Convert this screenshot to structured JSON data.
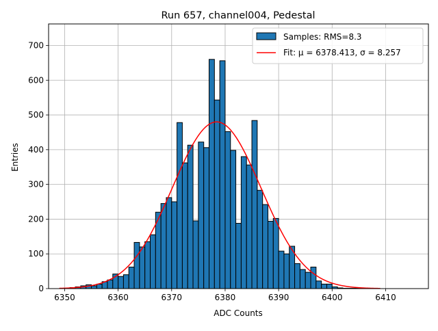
{
  "chart_data": {
    "type": "bar",
    "title": "Run 657, channel004, Pedestal",
    "xlabel": "ADC Counts",
    "ylabel": "Entries",
    "xlim": [
      6347,
      6418
    ],
    "ylim": [
      0,
      762
    ],
    "xticks": [
      6350,
      6360,
      6370,
      6380,
      6390,
      6400,
      6410
    ],
    "yticks": [
      0,
      100,
      200,
      300,
      400,
      500,
      600,
      700
    ],
    "grid": true,
    "legend_position": "top-right",
    "bin_start": 6350,
    "bin_width": 1,
    "counts": [
      1,
      3,
      5,
      8,
      11,
      8,
      13,
      20,
      25,
      42,
      35,
      40,
      62,
      133,
      120,
      135,
      155,
      220,
      245,
      262,
      250,
      478,
      362,
      413,
      195,
      422,
      406,
      660,
      543,
      656,
      452,
      398,
      188,
      380,
      356,
      484,
      283,
      242,
      194,
      202,
      108,
      100,
      122,
      72,
      55,
      47,
      62,
      22,
      13,
      13,
      5,
      2,
      1,
      1,
      1,
      1,
      1,
      1,
      0
    ],
    "series": [
      {
        "name": "Samples: RMS=8.3",
        "kind": "histogram",
        "color": "#1f77b4",
        "edge_color": "#000000"
      },
      {
        "name": "Fit: μ = 6378.413, σ = 8.257",
        "kind": "gaussian",
        "color": "#ff0000",
        "mu": 6378.413,
        "sigma": 8.257,
        "amplitude": 480,
        "x_range": [
          6349,
          6409
        ]
      }
    ]
  },
  "legend": {
    "hist_label": "Samples: RMS=8.3",
    "fit_label": "Fit: μ = 6378.413, σ = 8.257"
  }
}
